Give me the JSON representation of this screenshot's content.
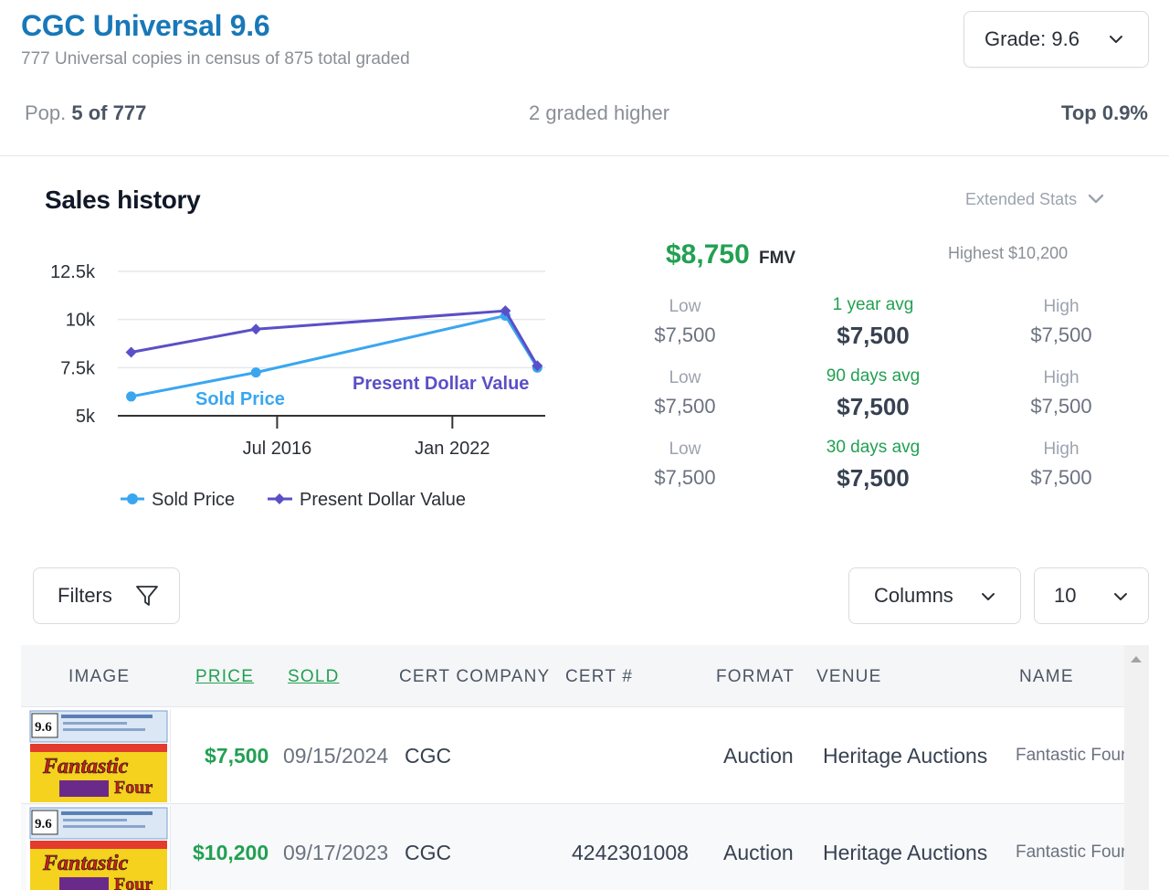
{
  "header": {
    "title": "CGC Universal 9.6",
    "subtitle": "777 Universal copies in census of 875 total graded",
    "grade_select": "Grade: 9.6"
  },
  "census": {
    "pop_prefix": "Pop.",
    "pop_value": "5 of 777",
    "graded_higher": "2 graded higher",
    "top": "Top 0.9%"
  },
  "sales": {
    "title": "Sales history",
    "extended_stats": "Extended Stats",
    "fmv_value": "$8,750",
    "fmv_unit": "FMV",
    "highest": "Highest $10,200",
    "stats": [
      {
        "low_label": "Low",
        "low": "$7,500",
        "avg_label": "1 year avg",
        "avg": "$7,500",
        "high_label": "High",
        "high": "$7,500"
      },
      {
        "low_label": "Low",
        "low": "$7,500",
        "avg_label": "90 days avg",
        "avg": "$7,500",
        "high_label": "High",
        "high": "$7,500"
      },
      {
        "low_label": "Low",
        "low": "$7,500",
        "avg_label": "30 days avg",
        "avg": "$7,500",
        "high_label": "High",
        "high": "$7,500"
      }
    ]
  },
  "chart_data": {
    "type": "line",
    "title": "",
    "xlabel": "",
    "ylabel": "",
    "x_ticks": [
      "Jul 2016",
      "Jan 2022"
    ],
    "y_ticks": [
      "5k",
      "7.5k",
      "10k",
      "12.5k"
    ],
    "ylim": [
      5000,
      12500
    ],
    "grid": true,
    "legend": "bottom",
    "series": [
      {
        "name": "Sold Price",
        "color": "#3aa6f0",
        "points": [
          {
            "x": "2011-12",
            "y": 6000
          },
          {
            "x": "2015-11",
            "y": 7250
          },
          {
            "x": "2023-09",
            "y": 10200
          },
          {
            "x": "2024-09",
            "y": 7500
          }
        ]
      },
      {
        "name": "Present Dollar Value",
        "color": "#5b4fc7",
        "points": [
          {
            "x": "2011-12",
            "y": 8300
          },
          {
            "x": "2015-11",
            "y": 9500
          },
          {
            "x": "2023-09",
            "y": 10450
          },
          {
            "x": "2024-09",
            "y": 7600
          }
        ]
      }
    ]
  },
  "controls": {
    "filters": "Filters",
    "columns": "Columns",
    "per_page": "10"
  },
  "table": {
    "headers": [
      "IMAGE",
      "PRICE",
      "SOLD",
      "CERT COMPANY",
      "CERT #",
      "FORMAT",
      "VENUE",
      "NAME"
    ],
    "rows": [
      {
        "price": "$7,500",
        "sold": "09/15/2024",
        "company": "CGC",
        "cert": "",
        "format": "Auction",
        "venue": "Heritage Auctions",
        "name": "Fantastic Four",
        "thumb_grade": "9.6",
        "thumb_title": "Fantastic",
        "thumb_title2": "Four"
      },
      {
        "price": "$10,200",
        "sold": "09/17/2023",
        "company": "CGC",
        "cert": "4242301008",
        "format": "Auction",
        "venue": "Heritage Auctions",
        "name": "Fantastic Four",
        "thumb_grade": "9.6",
        "thumb_title": "Fantastic",
        "thumb_title2": "Four"
      }
    ]
  }
}
